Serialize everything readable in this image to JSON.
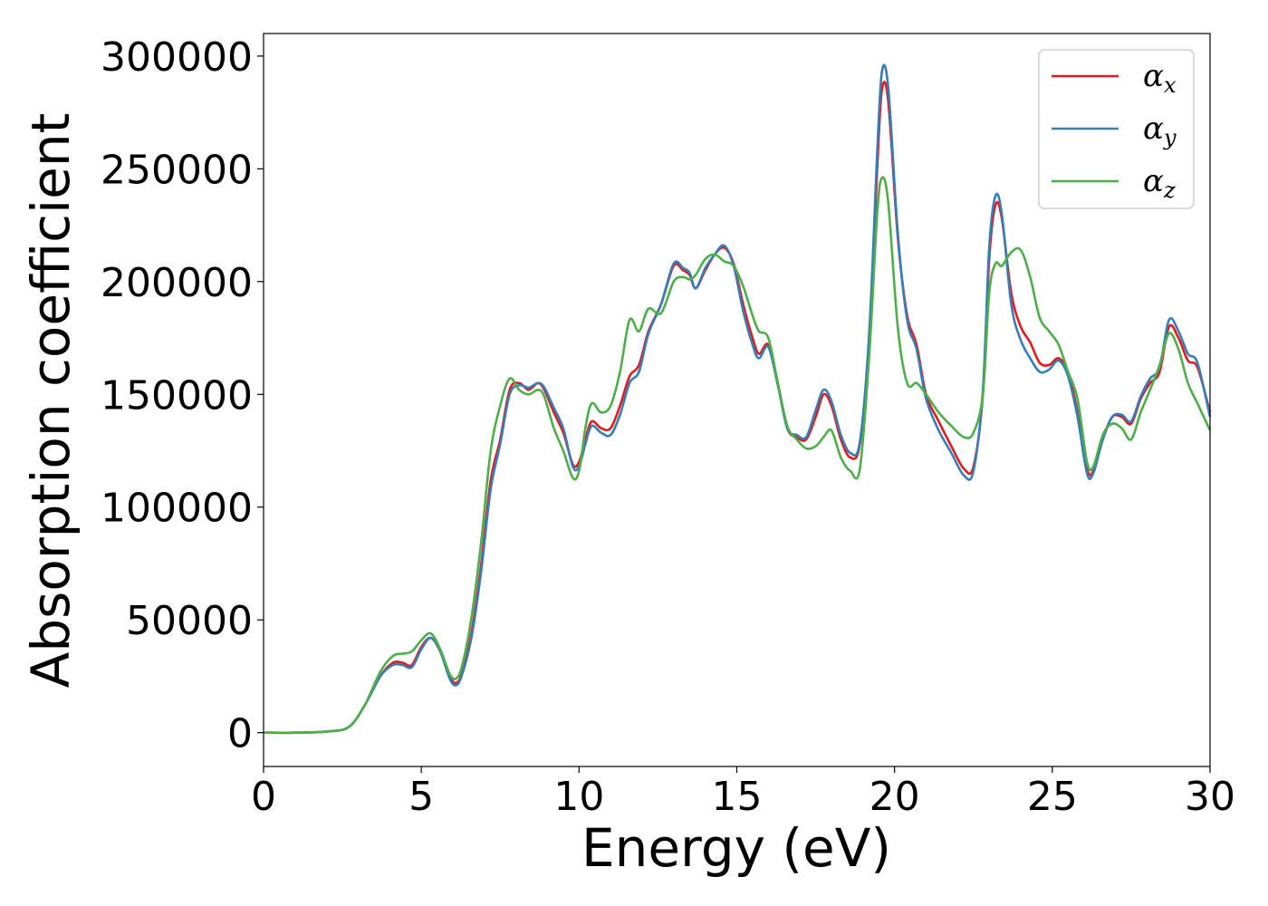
{
  "chart_data": {
    "type": "line",
    "title": "",
    "xlabel": "Energy (eV)",
    "ylabel": "Absorption coefficient",
    "xlim": [
      0,
      30
    ],
    "ylim": [
      -15000,
      310000
    ],
    "xticks": [
      0,
      5,
      10,
      15,
      20,
      25,
      30
    ],
    "xtick_labels": [
      "0",
      "5",
      "10",
      "15",
      "20",
      "25",
      "30"
    ],
    "yticks": [
      0,
      50000,
      100000,
      150000,
      200000,
      250000,
      300000
    ],
    "ytick_labels": [
      "0",
      "50000",
      "100000",
      "150000",
      "200000",
      "250000",
      "300000"
    ],
    "grid": false,
    "legend_position": "top-right",
    "series": [
      {
        "name": "α",
        "subscript": "x",
        "color": "#e41a1c",
        "points": [
          [
            0,
            0
          ],
          [
            1,
            0
          ],
          [
            2,
            500
          ],
          [
            2.7,
            2500
          ],
          [
            3.2,
            12000
          ],
          [
            3.7,
            25000
          ],
          [
            4.1,
            31000
          ],
          [
            4.4,
            31000
          ],
          [
            4.7,
            30000
          ],
          [
            5.0,
            38000
          ],
          [
            5.3,
            42000
          ],
          [
            5.6,
            36000
          ],
          [
            5.9,
            25000
          ],
          [
            6.1,
            22000
          ],
          [
            6.3,
            27000
          ],
          [
            6.6,
            45000
          ],
          [
            6.9,
            75000
          ],
          [
            7.2,
            112000
          ],
          [
            7.5,
            130000
          ],
          [
            7.8,
            152000
          ],
          [
            8.1,
            155000
          ],
          [
            8.4,
            152000
          ],
          [
            8.7,
            155000
          ],
          [
            8.9,
            152000
          ],
          [
            9.2,
            142000
          ],
          [
            9.5,
            133000
          ],
          [
            9.8,
            119000
          ],
          [
            10.0,
            120000
          ],
          [
            10.2,
            130000
          ],
          [
            10.4,
            138000
          ],
          [
            10.7,
            135000
          ],
          [
            11.0,
            135000
          ],
          [
            11.3,
            145000
          ],
          [
            11.6,
            158000
          ],
          [
            11.9,
            163000
          ],
          [
            12.2,
            178000
          ],
          [
            12.6,
            190000
          ],
          [
            13.0,
            207000
          ],
          [
            13.3,
            205000
          ],
          [
            13.5,
            203000
          ],
          [
            13.7,
            197000
          ],
          [
            14.0,
            205000
          ],
          [
            14.3,
            212000
          ],
          [
            14.6,
            215000
          ],
          [
            14.9,
            208000
          ],
          [
            15.2,
            190000
          ],
          [
            15.5,
            175000
          ],
          [
            15.7,
            168000
          ],
          [
            16.0,
            172000
          ],
          [
            16.3,
            155000
          ],
          [
            16.6,
            135000
          ],
          [
            16.9,
            131000
          ],
          [
            17.2,
            130000
          ],
          [
            17.5,
            140000
          ],
          [
            17.75,
            150000
          ],
          [
            18.0,
            145000
          ],
          [
            18.3,
            130000
          ],
          [
            18.6,
            122000
          ],
          [
            18.9,
            128000
          ],
          [
            19.2,
            175000
          ],
          [
            19.45,
            250000
          ],
          [
            19.6,
            285000
          ],
          [
            19.8,
            280000
          ],
          [
            20.1,
            220000
          ],
          [
            20.4,
            185000
          ],
          [
            20.7,
            172000
          ],
          [
            21.0,
            150000
          ],
          [
            21.4,
            138000
          ],
          [
            21.8,
            127000
          ],
          [
            22.2,
            117000
          ],
          [
            22.5,
            118000
          ],
          [
            22.8,
            150000
          ],
          [
            23.0,
            210000
          ],
          [
            23.2,
            234000
          ],
          [
            23.4,
            228000
          ],
          [
            23.7,
            195000
          ],
          [
            24.0,
            180000
          ],
          [
            24.3,
            173000
          ],
          [
            24.6,
            164000
          ],
          [
            24.9,
            163000
          ],
          [
            25.2,
            166000
          ],
          [
            25.5,
            160000
          ],
          [
            25.8,
            142000
          ],
          [
            26.1,
            117000
          ],
          [
            26.3,
            116000
          ],
          [
            26.6,
            130000
          ],
          [
            26.9,
            140000
          ],
          [
            27.2,
            140000
          ],
          [
            27.5,
            137000
          ],
          [
            27.8,
            148000
          ],
          [
            28.1,
            155000
          ],
          [
            28.4,
            160000
          ],
          [
            28.7,
            180000
          ],
          [
            29.0,
            175000
          ],
          [
            29.3,
            165000
          ],
          [
            29.6,
            162000
          ],
          [
            30.0,
            142000
          ]
        ]
      },
      {
        "name": "α",
        "subscript": "y",
        "color": "#377eb8",
        "points": [
          [
            0,
            0
          ],
          [
            1,
            0
          ],
          [
            2,
            500
          ],
          [
            2.7,
            2500
          ],
          [
            3.2,
            12000
          ],
          [
            3.7,
            25000
          ],
          [
            4.1,
            30000
          ],
          [
            4.4,
            30000
          ],
          [
            4.7,
            29000
          ],
          [
            5.0,
            37000
          ],
          [
            5.3,
            42000
          ],
          [
            5.6,
            36000
          ],
          [
            5.9,
            24000
          ],
          [
            6.1,
            21000
          ],
          [
            6.3,
            26000
          ],
          [
            6.6,
            43000
          ],
          [
            6.9,
            72000
          ],
          [
            7.2,
            108000
          ],
          [
            7.5,
            128000
          ],
          [
            7.8,
            150000
          ],
          [
            8.1,
            154000
          ],
          [
            8.4,
            153000
          ],
          [
            8.7,
            155000
          ],
          [
            8.9,
            153000
          ],
          [
            9.2,
            144000
          ],
          [
            9.5,
            135000
          ],
          [
            9.8,
            118000
          ],
          [
            10.0,
            118000
          ],
          [
            10.2,
            128000
          ],
          [
            10.4,
            136000
          ],
          [
            10.7,
            133000
          ],
          [
            11.0,
            132000
          ],
          [
            11.3,
            141000
          ],
          [
            11.6,
            155000
          ],
          [
            11.9,
            160000
          ],
          [
            12.2,
            177000
          ],
          [
            12.6,
            190000
          ],
          [
            13.0,
            208000
          ],
          [
            13.3,
            206000
          ],
          [
            13.5,
            204000
          ],
          [
            13.7,
            197000
          ],
          [
            14.0,
            206000
          ],
          [
            14.3,
            212000
          ],
          [
            14.6,
            216000
          ],
          [
            14.9,
            207000
          ],
          [
            15.2,
            187000
          ],
          [
            15.5,
            172000
          ],
          [
            15.7,
            166000
          ],
          [
            16.0,
            171000
          ],
          [
            16.3,
            154000
          ],
          [
            16.6,
            135000
          ],
          [
            16.9,
            132000
          ],
          [
            17.2,
            131000
          ],
          [
            17.5,
            143000
          ],
          [
            17.75,
            152000
          ],
          [
            18.0,
            147000
          ],
          [
            18.3,
            132000
          ],
          [
            18.6,
            124000
          ],
          [
            18.9,
            129000
          ],
          [
            19.2,
            178000
          ],
          [
            19.45,
            257000
          ],
          [
            19.6,
            293000
          ],
          [
            19.8,
            286000
          ],
          [
            20.1,
            222000
          ],
          [
            20.4,
            183000
          ],
          [
            20.7,
            170000
          ],
          [
            21.0,
            148000
          ],
          [
            21.4,
            134000
          ],
          [
            21.8,
            124000
          ],
          [
            22.2,
            114000
          ],
          [
            22.5,
            116000
          ],
          [
            22.8,
            152000
          ],
          [
            23.0,
            215000
          ],
          [
            23.2,
            238000
          ],
          [
            23.4,
            230000
          ],
          [
            23.7,
            190000
          ],
          [
            24.0,
            174000
          ],
          [
            24.3,
            166000
          ],
          [
            24.6,
            160000
          ],
          [
            24.9,
            161000
          ],
          [
            25.2,
            165000
          ],
          [
            25.5,
            158000
          ],
          [
            25.8,
            140000
          ],
          [
            26.1,
            115000
          ],
          [
            26.3,
            115000
          ],
          [
            26.6,
            130000
          ],
          [
            26.9,
            140000
          ],
          [
            27.2,
            141000
          ],
          [
            27.5,
            138000
          ],
          [
            27.8,
            149000
          ],
          [
            28.1,
            157000
          ],
          [
            28.4,
            162000
          ],
          [
            28.7,
            183000
          ],
          [
            29.0,
            178000
          ],
          [
            29.3,
            168000
          ],
          [
            29.6,
            164000
          ],
          [
            30.0,
            140000
          ]
        ]
      },
      {
        "name": "α",
        "subscript": "z",
        "color": "#4daf4a",
        "points": [
          [
            0,
            0
          ],
          [
            1,
            0
          ],
          [
            2,
            500
          ],
          [
            2.7,
            2500
          ],
          [
            3.2,
            12000
          ],
          [
            3.7,
            27000
          ],
          [
            4.1,
            34000
          ],
          [
            4.4,
            35000
          ],
          [
            4.7,
            36000
          ],
          [
            5.0,
            41000
          ],
          [
            5.3,
            44000
          ],
          [
            5.6,
            37000
          ],
          [
            5.9,
            26000
          ],
          [
            6.1,
            24000
          ],
          [
            6.3,
            30000
          ],
          [
            6.6,
            52000
          ],
          [
            6.9,
            85000
          ],
          [
            7.2,
            125000
          ],
          [
            7.5,
            145000
          ],
          [
            7.8,
            157000
          ],
          [
            8.1,
            152000
          ],
          [
            8.4,
            150000
          ],
          [
            8.7,
            152000
          ],
          [
            8.9,
            149000
          ],
          [
            9.2,
            135000
          ],
          [
            9.5,
            125000
          ],
          [
            9.8,
            113000
          ],
          [
            10.0,
            116000
          ],
          [
            10.2,
            135000
          ],
          [
            10.4,
            146000
          ],
          [
            10.7,
            142000
          ],
          [
            11.0,
            145000
          ],
          [
            11.3,
            160000
          ],
          [
            11.6,
            183000
          ],
          [
            11.9,
            178000
          ],
          [
            12.2,
            188000
          ],
          [
            12.6,
            186000
          ],
          [
            13.0,
            200000
          ],
          [
            13.3,
            202000
          ],
          [
            13.5,
            201000
          ],
          [
            13.7,
            203000
          ],
          [
            14.0,
            210000
          ],
          [
            14.3,
            212000
          ],
          [
            14.6,
            209000
          ],
          [
            14.9,
            207000
          ],
          [
            15.2,
            198000
          ],
          [
            15.5,
            185000
          ],
          [
            15.7,
            178000
          ],
          [
            16.0,
            175000
          ],
          [
            16.3,
            155000
          ],
          [
            16.6,
            136000
          ],
          [
            16.9,
            130000
          ],
          [
            17.2,
            126000
          ],
          [
            17.5,
            127000
          ],
          [
            17.75,
            131000
          ],
          [
            18.0,
            134000
          ],
          [
            18.3,
            122000
          ],
          [
            18.6,
            116000
          ],
          [
            18.9,
            117000
          ],
          [
            19.2,
            168000
          ],
          [
            19.45,
            230000
          ],
          [
            19.6,
            246000
          ],
          [
            19.8,
            235000
          ],
          [
            20.1,
            180000
          ],
          [
            20.4,
            155000
          ],
          [
            20.7,
            155000
          ],
          [
            21.0,
            150000
          ],
          [
            21.4,
            142000
          ],
          [
            21.8,
            136000
          ],
          [
            22.2,
            131000
          ],
          [
            22.5,
            133000
          ],
          [
            22.8,
            150000
          ],
          [
            23.0,
            195000
          ],
          [
            23.2,
            208000
          ],
          [
            23.4,
            207000
          ],
          [
            23.7,
            213000
          ],
          [
            24.0,
            214000
          ],
          [
            24.3,
            202000
          ],
          [
            24.6,
            184000
          ],
          [
            24.9,
            178000
          ],
          [
            25.2,
            172000
          ],
          [
            25.5,
            160000
          ],
          [
            25.8,
            148000
          ],
          [
            26.1,
            120000
          ],
          [
            26.3,
            118000
          ],
          [
            26.6,
            132000
          ],
          [
            26.9,
            137000
          ],
          [
            27.2,
            135000
          ],
          [
            27.5,
            130000
          ],
          [
            27.8,
            142000
          ],
          [
            28.1,
            152000
          ],
          [
            28.4,
            163000
          ],
          [
            28.7,
            177000
          ],
          [
            29.0,
            170000
          ],
          [
            29.3,
            155000
          ],
          [
            29.6,
            146000
          ],
          [
            30.0,
            134000
          ]
        ]
      }
    ]
  }
}
